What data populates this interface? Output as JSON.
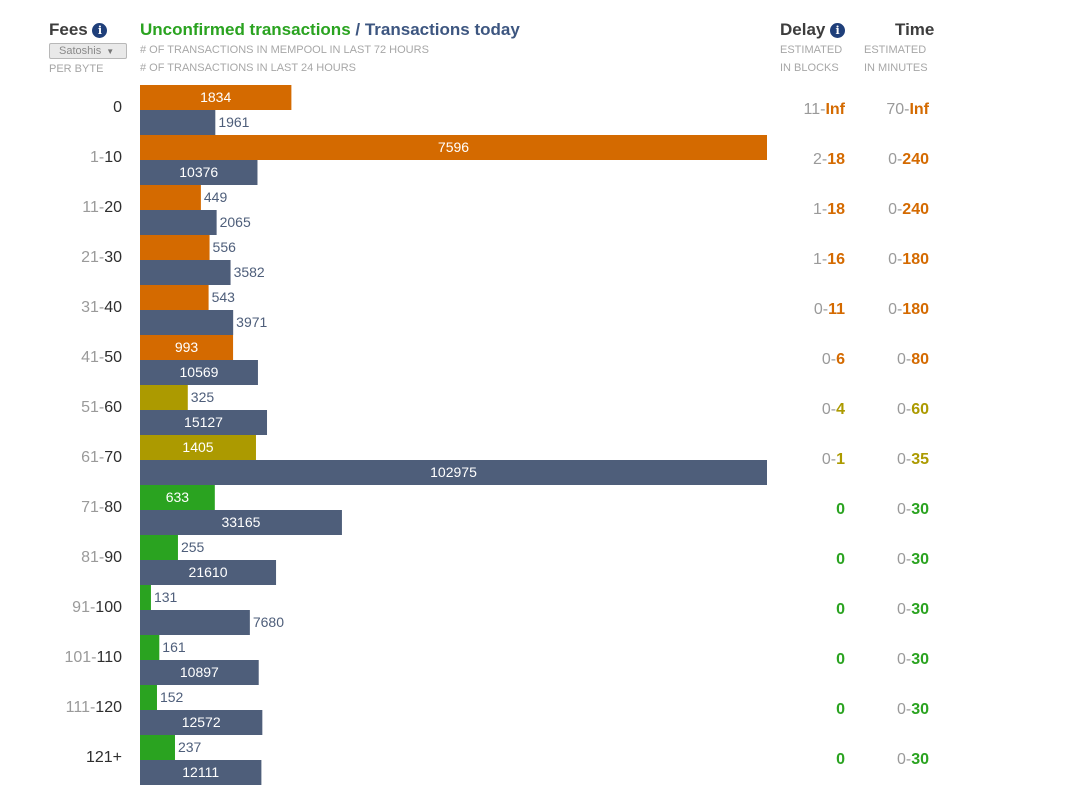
{
  "header": {
    "fees_title": "Fees",
    "unit_selected": "Satoshis",
    "per_byte": "PER BYTE",
    "title_unconfirmed": "Unconfirmed transactions",
    "title_separator": "/",
    "title_today": "Transactions today",
    "sub_mempool": "# OF TRANSACTIONS IN MEMPOOL IN LAST 72 HOURS",
    "sub_today": "# OF TRANSACTIONS IN LAST 24 HOURS",
    "delay_title": "Delay",
    "delay_sub1": "ESTIMATED",
    "delay_sub2": "IN BLOCKS",
    "time_title": "Time",
    "time_sub1": "ESTIMATED",
    "time_sub2": "IN MINUTES"
  },
  "colors": {
    "orange": "#d46a00",
    "olive": "#ac9a00",
    "green": "#2aa320",
    "slate": "#4e5e7a",
    "unconfirmed_title": "#2aa320",
    "today_title": "#3d5680"
  },
  "icons": {
    "info": "info-circle-icon",
    "dropdown": "caret-down-icon"
  },
  "rows": [
    {
      "fee_lo": "",
      "fee_hi": "0",
      "delay_lo": "11",
      "delay_hi": "Inf",
      "time_lo": "70",
      "time_hi": "Inf",
      "color": "orange"
    },
    {
      "fee_lo": "1",
      "fee_hi": "10",
      "delay_lo": "2",
      "delay_hi": "18",
      "time_lo": "0",
      "time_hi": "240",
      "color": "orange"
    },
    {
      "fee_lo": "11",
      "fee_hi": "20",
      "delay_lo": "1",
      "delay_hi": "18",
      "time_lo": "0",
      "time_hi": "240",
      "color": "orange"
    },
    {
      "fee_lo": "21",
      "fee_hi": "30",
      "delay_lo": "1",
      "delay_hi": "16",
      "time_lo": "0",
      "time_hi": "180",
      "color": "orange"
    },
    {
      "fee_lo": "31",
      "fee_hi": "40",
      "delay_lo": "0",
      "delay_hi": "11",
      "time_lo": "0",
      "time_hi": "180",
      "color": "orange"
    },
    {
      "fee_lo": "41",
      "fee_hi": "50",
      "delay_lo": "0",
      "delay_hi": "6",
      "time_lo": "0",
      "time_hi": "80",
      "color": "orange"
    },
    {
      "fee_lo": "51",
      "fee_hi": "60",
      "delay_lo": "0",
      "delay_hi": "4",
      "time_lo": "0",
      "time_hi": "60",
      "color": "olive"
    },
    {
      "fee_lo": "61",
      "fee_hi": "70",
      "delay_lo": "0",
      "delay_hi": "1",
      "time_lo": "0",
      "time_hi": "35",
      "color": "olive"
    },
    {
      "fee_lo": "71",
      "fee_hi": "80",
      "delay_lo": "",
      "delay_hi": "0",
      "time_lo": "0",
      "time_hi": "30",
      "color": "green"
    },
    {
      "fee_lo": "81",
      "fee_hi": "90",
      "delay_lo": "",
      "delay_hi": "0",
      "time_lo": "0",
      "time_hi": "30",
      "color": "green"
    },
    {
      "fee_lo": "91",
      "fee_hi": "100",
      "delay_lo": "",
      "delay_hi": "0",
      "time_lo": "0",
      "time_hi": "30",
      "color": "green"
    },
    {
      "fee_lo": "101",
      "fee_hi": "110",
      "delay_lo": "",
      "delay_hi": "0",
      "time_lo": "0",
      "time_hi": "30",
      "color": "green"
    },
    {
      "fee_lo": "111",
      "fee_hi": "120",
      "delay_lo": "",
      "delay_hi": "0",
      "time_lo": "0",
      "time_hi": "30",
      "color": "green"
    },
    {
      "fee_lo": "",
      "fee_hi": "121+",
      "delay_lo": "",
      "delay_hi": "0",
      "time_lo": "0",
      "time_hi": "30",
      "color": "green"
    }
  ],
  "chart_data": {
    "type": "bar",
    "orientation": "horizontal",
    "categories": [
      "0",
      "1-10",
      "11-20",
      "21-30",
      "31-40",
      "41-50",
      "51-60",
      "61-70",
      "71-80",
      "81-90",
      "91-100",
      "101-110",
      "111-120",
      "121+"
    ],
    "series": [
      {
        "name": "Unconfirmed transactions",
        "values": [
          1834,
          7596,
          449,
          556,
          543,
          993,
          325,
          1405,
          633,
          255,
          131,
          161,
          152,
          237
        ]
      },
      {
        "name": "Transactions today",
        "values": [
          1961,
          10376,
          2065,
          3582,
          3971,
          10569,
          15127,
          102975,
          33165,
          21610,
          7680,
          10897,
          12572,
          12111
        ]
      }
    ],
    "scale": "log"
  }
}
